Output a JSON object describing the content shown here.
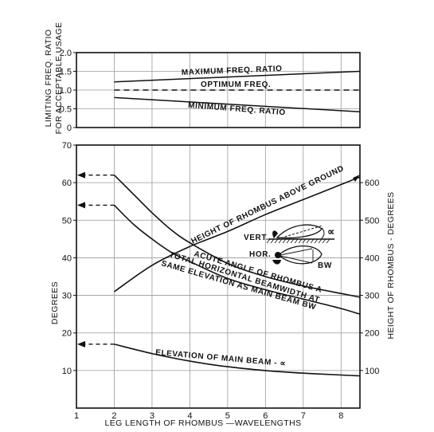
{
  "chart_data": [
    {
      "type": "line",
      "panel": "top",
      "ylabel_lines": [
        "LIMITING FREQ. RATIO",
        "FOR ACCEPTABLE USAGE"
      ],
      "xlim": [
        1,
        8.5
      ],
      "ylim": [
        0,
        2.0
      ],
      "yticks": [
        "0",
        "0.5",
        "1.0",
        "1.5",
        "2.0"
      ],
      "grid": true,
      "series": [
        {
          "name": "MAXIMUM FREQ. RATIO",
          "style": "solid",
          "x": [
            2,
            8.5
          ],
          "y": [
            1.22,
            1.5
          ]
        },
        {
          "name": "OPTIMUM FREQ.",
          "style": "dashed",
          "x": [
            2,
            8.5
          ],
          "y": [
            1.0,
            1.0
          ]
        },
        {
          "name": "MINIMUM FREQ. RATIO",
          "style": "solid",
          "x": [
            2,
            8.5
          ],
          "y": [
            0.8,
            0.42
          ]
        }
      ]
    },
    {
      "type": "line",
      "panel": "bottom",
      "xlabel": "LEG LENGTH OF RHOMBUS —WAVELENGTHS",
      "ylabel": "DEGREES",
      "ylabel_right": "HEIGHT OF RHOMBUS - DEGREES",
      "xlim": [
        1,
        8.5
      ],
      "ylim": [
        0,
        70
      ],
      "ylim_right": [
        0,
        700
      ],
      "xticks": [
        "1",
        "2",
        "3",
        "4",
        "5",
        "6",
        "7",
        "8"
      ],
      "yticks": [
        "10",
        "20",
        "30",
        "40",
        "50",
        "60",
        "70"
      ],
      "yticks_right": [
        "100",
        "200",
        "300",
        "400",
        "500",
        "600"
      ],
      "grid": true,
      "series": [
        {
          "name": "HEIGHT OF RHOMBUS ABOVE GROUND",
          "axis": "right",
          "x": [
            2,
            3,
            4,
            5,
            6,
            7,
            8,
            8.5
          ],
          "y": [
            310,
            380,
            430,
            470,
            515,
            555,
            595,
            615
          ]
        },
        {
          "name": "ACUTE ANGLE OF RHOMBUS A",
          "axis": "left",
          "x": [
            2,
            2.5,
            3,
            3.5,
            4,
            5,
            6,
            7,
            8,
            8.5
          ],
          "y": [
            62,
            57,
            52,
            47.5,
            44,
            38.5,
            35,
            32.5,
            30.5,
            29.5
          ]
        },
        {
          "name": "TOTAL HORIZONTAL BEAMWIDTH AT SAME ELEVATION AS MAIN BEAM BW",
          "axis": "left",
          "x": [
            2,
            2.5,
            3,
            3.5,
            4,
            5,
            6,
            7,
            8,
            8.5
          ],
          "y": [
            54,
            49,
            45,
            41.5,
            39,
            34.5,
            31.5,
            29,
            26.5,
            25
          ]
        },
        {
          "name": "ELEVATION OF MAIN BEAM - ∝",
          "axis": "left",
          "x": [
            2,
            3,
            4,
            5,
            6,
            7,
            8,
            8.5
          ],
          "y": [
            17,
            14.5,
            12.5,
            11,
            10,
            9.3,
            8.8,
            8.6
          ]
        }
      ],
      "arrows_to_axis": [
        62,
        54,
        17
      ],
      "inset": {
        "labels": [
          "VERT.",
          "HOR.",
          "∝",
          "BW"
        ]
      }
    }
  ],
  "colors": {
    "line": "#111111",
    "grid": "#9a9a9a",
    "background": "#ffffff"
  }
}
